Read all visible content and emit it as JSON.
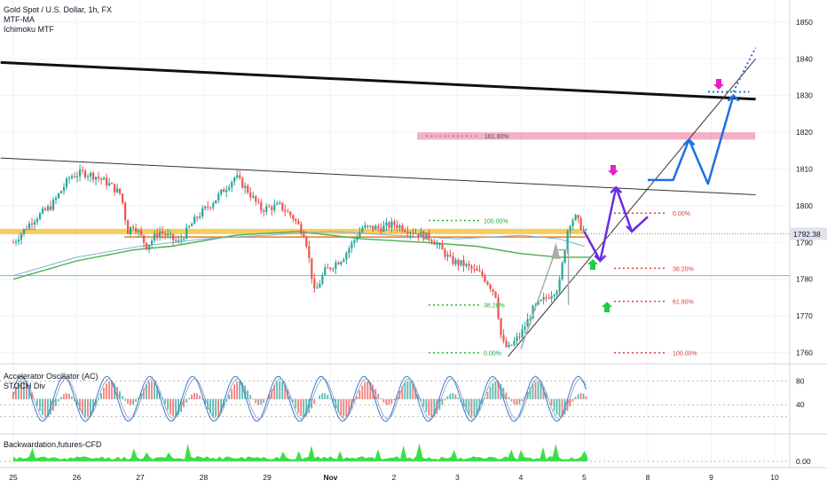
{
  "header": {
    "symbol": "Gold Spot / U.S. Dollar, 1h, FX",
    "indicator1": "MTF-MA",
    "indicator2": "Ichimoku MTF"
  },
  "price_badge": "1792.38",
  "osc_panel": {
    "title": "Accelerator Oscillator (AC)",
    "subtitle": "STOCH Div",
    "ticks": [
      "80",
      "40"
    ]
  },
  "back_panel": {
    "title": "Backwardation,futures-CFD",
    "tick": "0.00"
  },
  "colors": {
    "gold": "#f6c343",
    "orange": "#e67e22",
    "green_ma": "#4caf50",
    "cyan_line": "#4dd0d0",
    "up": "#26a69a",
    "down": "#ef5350",
    "proj_blue": "#1e6fe0",
    "proj_purple": "#6a2ee0",
    "magenta": "#e91ec8",
    "green_arrow": "#22cc44",
    "pink_zone": "#f29bb8"
  },
  "chart_data": {
    "type": "line",
    "title": "Gold Spot / U.S. Dollar, 1h, FX",
    "x_tick_labels": [
      "25",
      "26",
      "27",
      "28",
      "29",
      "Nov",
      "2",
      "3",
      "4",
      "5",
      "8",
      "9",
      "10"
    ],
    "y_ticks": [
      1760,
      1770,
      1780,
      1790,
      1800,
      1810,
      1820,
      1830,
      1840,
      1850
    ],
    "ylim": [
      1757,
      1856
    ],
    "last_price": 1792.38,
    "price_path": [
      [
        25.0,
        1790
      ],
      [
        25.3,
        1796
      ],
      [
        25.6,
        1800
      ],
      [
        25.9,
        1808
      ],
      [
        26.1,
        1809
      ],
      [
        26.3,
        1808
      ],
      [
        26.5,
        1806
      ],
      [
        26.7,
        1803
      ],
      [
        26.8,
        1793
      ],
      [
        26.9,
        1795
      ],
      [
        27.1,
        1789
      ],
      [
        27.3,
        1793
      ],
      [
        27.6,
        1790
      ],
      [
        27.9,
        1797
      ],
      [
        28.2,
        1802
      ],
      [
        28.5,
        1808
      ],
      [
        28.7,
        1804
      ],
      [
        28.9,
        1799
      ],
      [
        29.2,
        1800
      ],
      [
        29.4,
        1797
      ],
      [
        29.6,
        1792
      ],
      [
        29.75,
        1776
      ],
      [
        29.9,
        1782
      ],
      [
        30.2,
        1786
      ],
      [
        30.5,
        1794
      ],
      [
        30.8,
        1794
      ],
      [
        31.0,
        1795
      ],
      [
        31.3,
        1793
      ],
      [
        31.6,
        1791
      ],
      [
        31.9,
        1785
      ],
      [
        32.1,
        1784
      ],
      [
        32.4,
        1781
      ],
      [
        32.6,
        1776
      ],
      [
        32.7,
        1763
      ],
      [
        32.8,
        1761
      ],
      [
        33.0,
        1765
      ],
      [
        33.2,
        1772
      ],
      [
        33.4,
        1775
      ],
      [
        33.6,
        1778
      ],
      [
        33.75,
        1795
      ],
      [
        33.85,
        1797
      ],
      [
        34.0,
        1793
      ],
      [
        34.05,
        1792.38
      ]
    ],
    "levels": [
      {
        "name": "MTF-MA gold",
        "value": 1793
      },
      {
        "name": "MTF-MA orange",
        "value": 1791.5
      },
      {
        "name": "horizontal support",
        "value": 1781
      }
    ],
    "fib_left": [
      {
        "label": "100.00%",
        "value": 1796
      },
      {
        "label": "38.20%",
        "value": 1773
      },
      {
        "label": "0.00%",
        "value": 1760
      }
    ],
    "fib_right": [
      {
        "label": "0.00%",
        "value": 1798
      },
      {
        "label": "38.20%",
        "value": 1783
      },
      {
        "label": "61.80%",
        "value": 1774
      },
      {
        "label": "100.00%",
        "value": 1760
      }
    ],
    "fib_top": {
      "label": "161.80%",
      "value": 1819
    },
    "target_zone": {
      "from": 1818,
      "to": 1820
    },
    "resistance_line": [
      [
        24.8,
        1839
      ],
      [
        36.7,
        1829
      ]
    ],
    "upper_channel_line": [
      [
        24.8,
        1813
      ],
      [
        36.7,
        1803
      ]
    ],
    "rising_support_line": [
      [
        32.8,
        1759
      ],
      [
        36.7,
        1840
      ]
    ],
    "projection_purple": [
      [
        34.0,
        1793
      ],
      [
        34.25,
        1785
      ],
      [
        34.5,
        1805
      ],
      [
        34.75,
        1793
      ],
      [
        35.0,
        1797
      ]
    ],
    "projection_blue": [
      [
        35.0,
        1807
      ],
      [
        35.4,
        1807
      ],
      [
        35.65,
        1818
      ],
      [
        35.95,
        1806
      ],
      [
        36.35,
        1830
      ]
    ],
    "target_level": 1831
  }
}
